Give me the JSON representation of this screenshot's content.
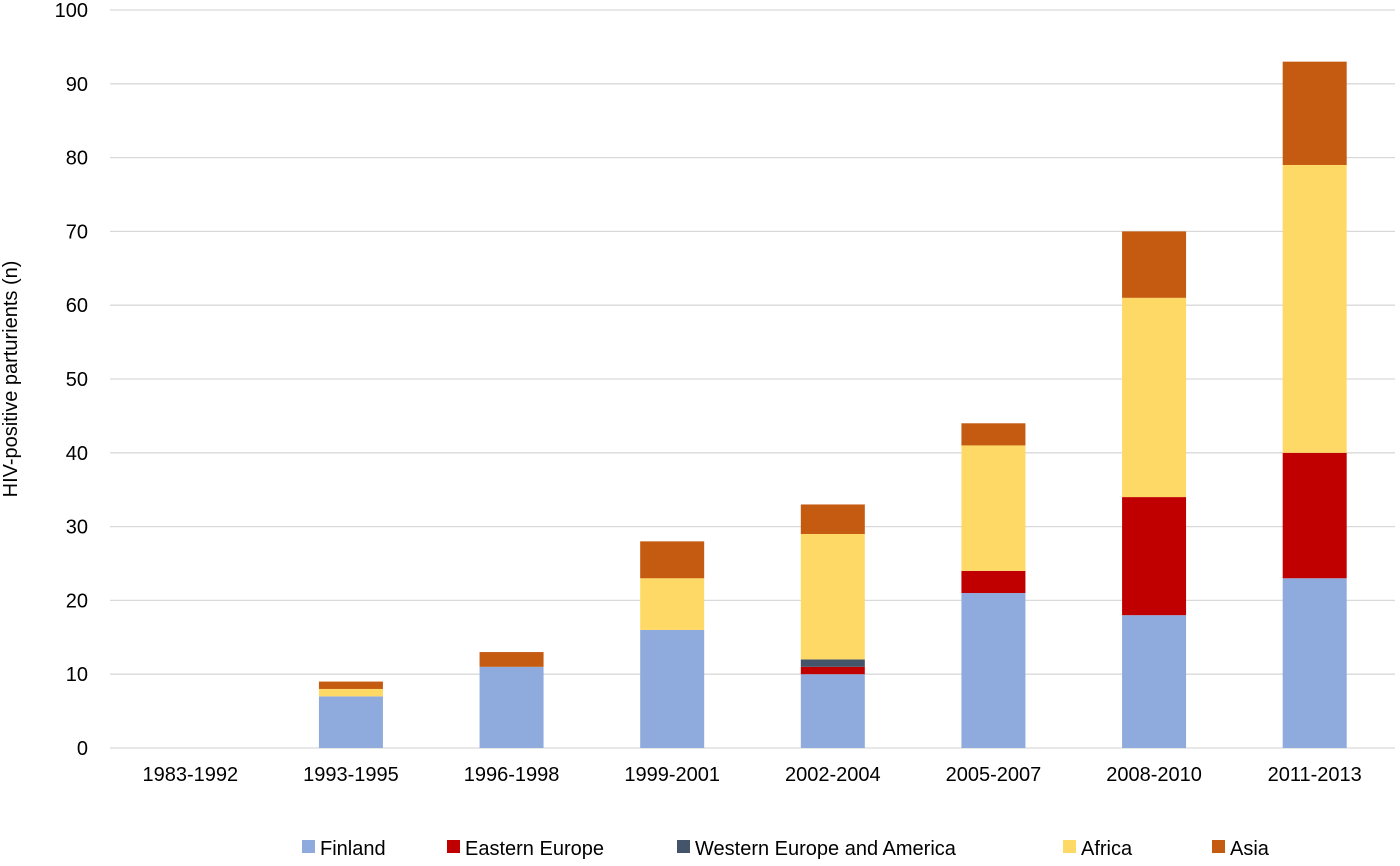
{
  "chart_data": {
    "type": "bar",
    "stacked": true,
    "title": "",
    "xlabel": "",
    "ylabel": "HIV-positive parturients (n)",
    "ylim": [
      0,
      100
    ],
    "yticks": [
      0,
      10,
      20,
      30,
      40,
      50,
      60,
      70,
      80,
      90,
      100
    ],
    "grid": true,
    "legend_position": "bottom",
    "categories": [
      "1983-1992",
      "1993-1995",
      "1996-1998",
      "1999-2001",
      "2002-2004",
      "2005-2007",
      "2008-2010",
      "2011-2013"
    ],
    "series": [
      {
        "name": "Finland",
        "color": "#8faadc",
        "values": [
          0,
          7,
          11,
          16,
          10,
          21,
          18,
          23
        ]
      },
      {
        "name": "Eastern Europe",
        "color": "#c00000",
        "values": [
          0,
          0,
          0,
          0,
          1,
          3,
          16,
          17
        ]
      },
      {
        "name": "Western Europe and America",
        "color": "#44546a",
        "values": [
          0,
          0,
          0,
          0,
          1,
          0,
          0,
          0
        ]
      },
      {
        "name": "Africa",
        "color": "#ffd966",
        "values": [
          0,
          1,
          0,
          7,
          17,
          17,
          27,
          39
        ]
      },
      {
        "name": "Asia",
        "color": "#c55a11",
        "values": [
          0,
          1,
          2,
          5,
          4,
          3,
          9,
          14
        ]
      }
    ]
  }
}
